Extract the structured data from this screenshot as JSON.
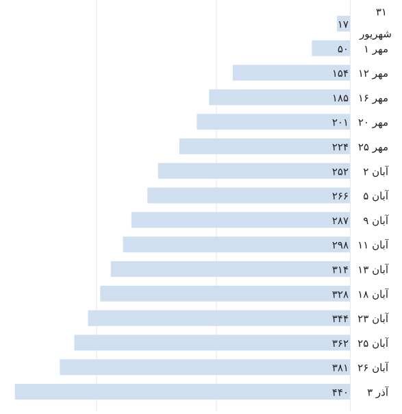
{
  "chart_data": {
    "type": "bar",
    "orientation": "horizontal",
    "direction": "right-to-left",
    "categories": [
      "۳۱ شهریور",
      "۱ مهر",
      "۱۲ مهر",
      "۱۶ مهر",
      "۲۰ مهر",
      "۲۵ مهر",
      "۲ آبان",
      "۵ آبان",
      "۹ آبان",
      "۱۱ آبان",
      "۱۳ آبان",
      "۱۸ آبان",
      "۲۳ آبان",
      "۲۵ آبان",
      "۲۶ آبان",
      "۳ آذر"
    ],
    "values": [
      17,
      50,
      154,
      185,
      201,
      224,
      252,
      266,
      287,
      298,
      314,
      328,
      344,
      362,
      381,
      440
    ],
    "value_labels": [
      "۱۷",
      "۵۰",
      "۱۵۴",
      "۱۸۵",
      "۲۰۱",
      "۲۲۴",
      "۲۵۲",
      "۲۶۶",
      "۲۸۷",
      "۲۹۸",
      "۳۱۴",
      "۳۲۸",
      "۳۴۴",
      "۳۶۲",
      "۳۸۱",
      "۴۴۰"
    ],
    "title": "",
    "xlabel": "",
    "ylabel": "",
    "xlim": [
      0,
      440
    ],
    "grid": true,
    "legend": "none",
    "bar_color": "#cfdff0",
    "text_color": "#222222",
    "grid_color": "#e6e6e6"
  }
}
